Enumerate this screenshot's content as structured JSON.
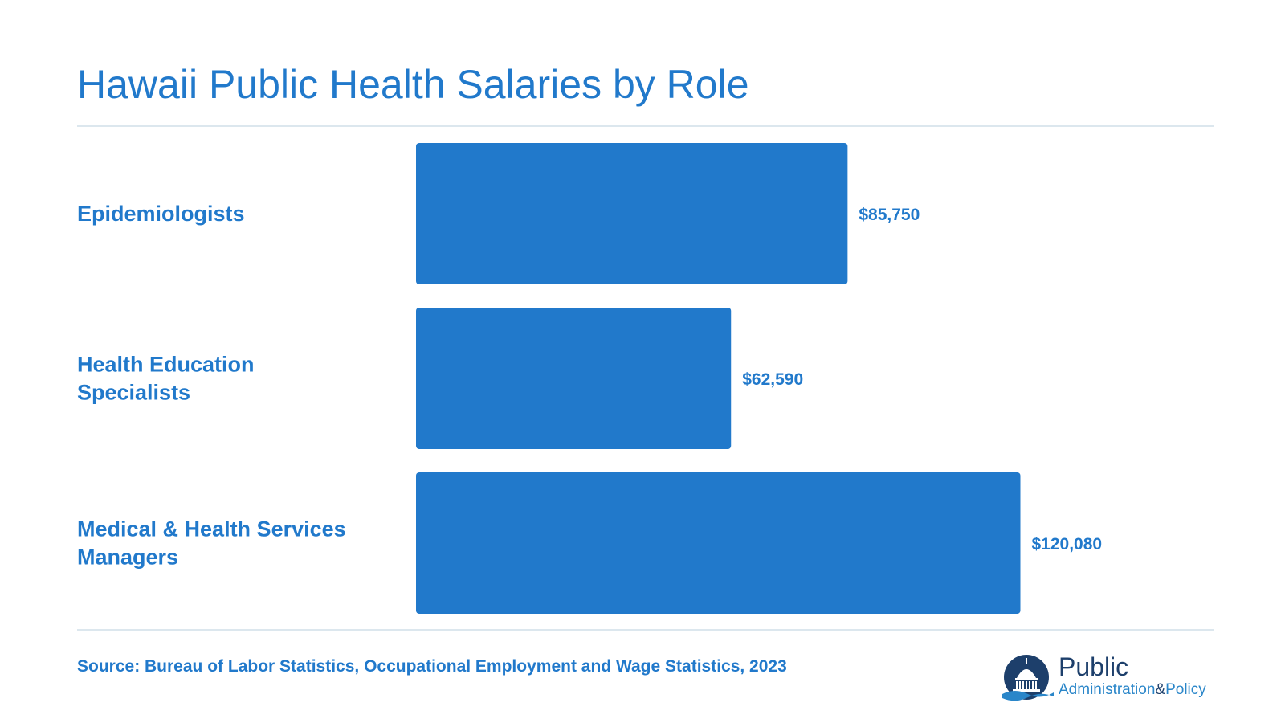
{
  "header": {
    "title": "Hawaii Public Health Salaries by Role"
  },
  "chart_data": {
    "type": "bar",
    "orientation": "horizontal",
    "title": "Hawaii Public Health Salaries by Role",
    "categories": [
      [
        "Epidemiologists"
      ],
      [
        "Health Education",
        "Specialists"
      ],
      [
        "Medical & Health Services",
        "Managers"
      ]
    ],
    "values": [
      85750,
      62590,
      120080
    ],
    "value_labels": [
      "$85,750",
      "$62,590",
      "$120,080"
    ],
    "xlim": [
      0,
      150000
    ],
    "grid": false,
    "legend": "none",
    "bar_color": "#2179CB"
  },
  "footer": {
    "source": "Source: Bureau of Labor Statistics, Occupational Employment and Wage Statistics, 2023"
  },
  "logo": {
    "line1": "Public",
    "line2a": "Administration",
    "line2b": "&",
    "line2c": "Policy"
  },
  "colors": {
    "accent": "#2179CB",
    "rule": "#DCE7EE",
    "logo_dark": "#1d3f6b"
  }
}
